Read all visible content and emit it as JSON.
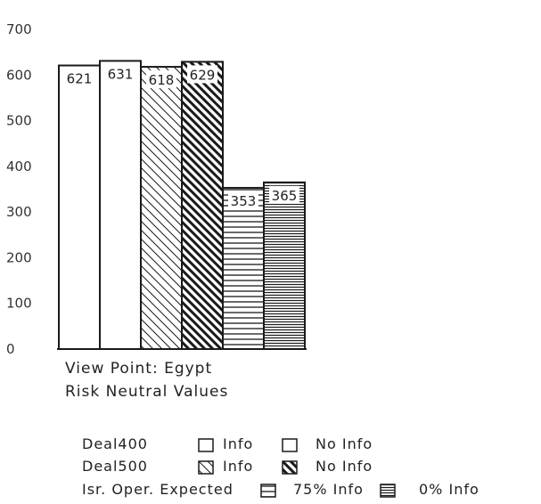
{
  "chart_data": {
    "type": "bar",
    "categories": [
      "Deal400 Info",
      "Deal400 No Info",
      "Deal500 Info",
      "Deal500 No Info",
      "Isr. Oper. Expected 75% Info",
      "Isr. Oper. Expected 0% Info"
    ],
    "values": [
      621,
      631,
      618,
      629,
      353,
      365
    ],
    "data_labels": [
      "621",
      "631",
      "618",
      "629",
      "353",
      "365"
    ],
    "patterns": [
      "blank",
      "blank",
      "diag",
      "diag-dense",
      "hlines",
      "hlines-dense"
    ],
    "yticks": [
      "0",
      "100",
      "200",
      "300",
      "400",
      "500",
      "600",
      "700"
    ],
    "ylim": [
      0,
      700
    ],
    "caption": [
      "View Point: Egypt",
      "Risk Neutral Values"
    ],
    "legend": [
      {
        "series": "Deal400",
        "first": "Info",
        "second": "No Info"
      },
      {
        "series": "Deal500",
        "first": "Info",
        "second": "No Info"
      },
      {
        "series": "Isr. Oper. Expected",
        "first": "75% Info",
        "second": "0% Info"
      }
    ],
    "grid": false,
    "colors": {
      "ink": "#1a1a1a",
      "background": "#ffffff"
    }
  }
}
